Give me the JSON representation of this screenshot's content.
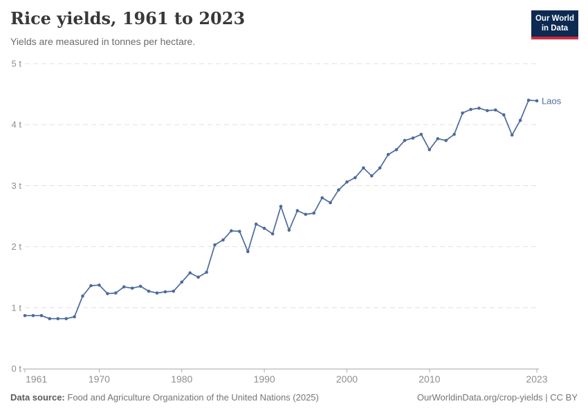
{
  "logo": {
    "line1": "Our World",
    "line2": "in Data",
    "bg_color": "#0d2a52",
    "accent_color": "#cf2b3e"
  },
  "footer": {
    "datasource_label": "Data source:",
    "datasource_text": "Food and Agriculture Organization of the United Nations (2025)",
    "credit": "OurWorldinData.org/crop-yields | CC BY"
  },
  "chart_data": {
    "type": "line",
    "title": "Rice yields, 1961 to 2023",
    "subtitle": "Yields are measured in tonnes per hectare.",
    "xlabel": "",
    "ylabel": "",
    "xlim": [
      1961,
      2023
    ],
    "ylim": [
      0,
      5
    ],
    "grid": "horizontal-dashed",
    "legend_position": "end-of-line-label",
    "x_ticks": [
      1961,
      1970,
      1980,
      1990,
      2000,
      2010,
      2023
    ],
    "x_tick_labels": [
      "1961",
      "1970",
      "1980",
      "1990",
      "2000",
      "2010",
      "2023"
    ],
    "y_ticks": [
      0,
      1,
      2,
      3,
      4,
      5
    ],
    "y_tick_labels": [
      "0 t",
      "1 t",
      "2 t",
      "3 t",
      "4 t",
      "5 t"
    ],
    "axis_color": "#a9a9a9",
    "gridline_color": "#e0e0e0",
    "tick_label_color": "#8e8e8e",
    "series": [
      {
        "name": "Laos",
        "color": "#4c6a9c",
        "years": [
          1961,
          1962,
          1963,
          1964,
          1965,
          1966,
          1967,
          1968,
          1969,
          1970,
          1971,
          1972,
          1973,
          1974,
          1975,
          1976,
          1977,
          1978,
          1979,
          1980,
          1981,
          1982,
          1983,
          1984,
          1985,
          1986,
          1987,
          1988,
          1989,
          1990,
          1991,
          1992,
          1993,
          1994,
          1995,
          1996,
          1997,
          1998,
          1999,
          2000,
          2001,
          2002,
          2003,
          2004,
          2005,
          2006,
          2007,
          2008,
          2009,
          2010,
          2011,
          2012,
          2013,
          2014,
          2015,
          2016,
          2017,
          2018,
          2019,
          2020,
          2021,
          2022,
          2023
        ],
        "values": [
          0.87,
          0.87,
          0.87,
          0.82,
          0.82,
          0.82,
          0.85,
          1.19,
          1.36,
          1.37,
          1.23,
          1.24,
          1.34,
          1.32,
          1.35,
          1.27,
          1.24,
          1.26,
          1.27,
          1.42,
          1.57,
          1.5,
          1.58,
          2.03,
          2.11,
          2.26,
          2.25,
          1.92,
          2.37,
          2.3,
          2.21,
          2.66,
          2.27,
          2.59,
          2.53,
          2.55,
          2.8,
          2.72,
          2.93,
          3.06,
          3.13,
          3.29,
          3.16,
          3.29,
          3.51,
          3.59,
          3.74,
          3.78,
          3.84,
          3.59,
          3.77,
          3.74,
          3.84,
          4.19,
          4.25,
          4.27,
          4.23,
          4.24,
          4.16,
          3.83,
          4.07,
          4.4,
          4.39
        ]
      }
    ]
  }
}
